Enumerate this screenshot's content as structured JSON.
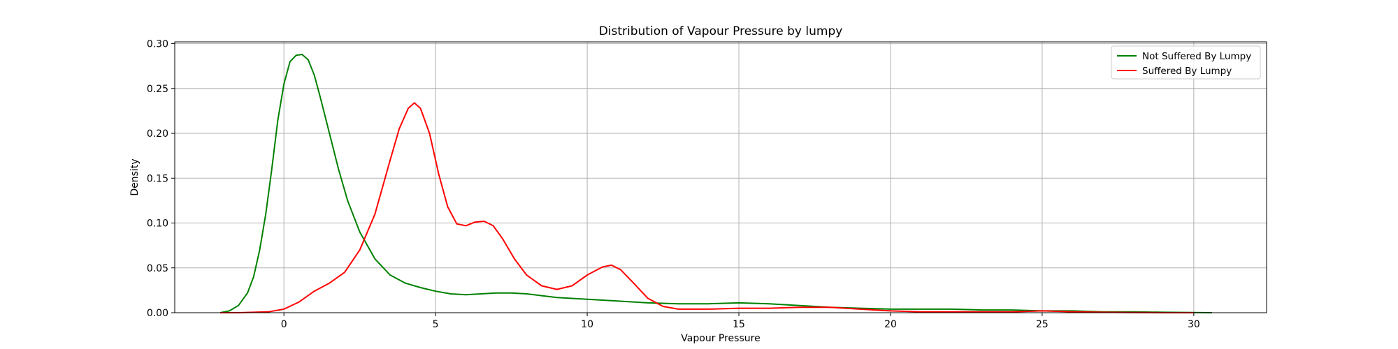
{
  "chart_data": {
    "type": "line",
    "title": "Distribution of Vapour Pressure by lumpy",
    "xlabel": "Vapour Pressure",
    "ylabel": "Density",
    "xlim": [
      -3.6,
      32.4
    ],
    "ylim": [
      0,
      0.302
    ],
    "xticks": [
      0,
      5,
      10,
      15,
      20,
      25,
      30
    ],
    "yticks": [
      0.0,
      0.05,
      0.1,
      0.15,
      0.2,
      0.25,
      0.3
    ],
    "xtick_labels": [
      "0",
      "5",
      "10",
      "15",
      "20",
      "25",
      "30"
    ],
    "ytick_labels": [
      "0.00",
      "0.05",
      "0.10",
      "0.15",
      "0.20",
      "0.25",
      "0.30"
    ],
    "grid": true,
    "legend_position": "top-right",
    "series": [
      {
        "name": "Not Suffered By Lumpy",
        "color": "#008000",
        "x": [
          -2.1,
          -1.8,
          -1.5,
          -1.2,
          -1.0,
          -0.8,
          -0.6,
          -0.4,
          -0.2,
          0.0,
          0.2,
          0.4,
          0.6,
          0.8,
          1.0,
          1.2,
          1.5,
          1.8,
          2.1,
          2.5,
          3.0,
          3.5,
          4.0,
          4.5,
          5.0,
          5.5,
          6.0,
          6.5,
          7.0,
          7.5,
          8.0,
          8.5,
          9.0,
          10.0,
          11.0,
          12.0,
          13.0,
          14.0,
          15.0,
          16.0,
          17.0,
          18.0,
          19.0,
          20.0,
          21.0,
          22.0,
          23.0,
          24.0,
          25.0,
          26.0,
          27.0,
          28.0,
          29.0,
          30.0,
          30.6
        ],
        "y": [
          0.0,
          0.002,
          0.008,
          0.022,
          0.04,
          0.07,
          0.11,
          0.16,
          0.215,
          0.255,
          0.28,
          0.287,
          0.288,
          0.282,
          0.265,
          0.24,
          0.2,
          0.16,
          0.125,
          0.09,
          0.06,
          0.042,
          0.033,
          0.028,
          0.024,
          0.021,
          0.02,
          0.021,
          0.022,
          0.022,
          0.021,
          0.019,
          0.017,
          0.015,
          0.013,
          0.011,
          0.01,
          0.01,
          0.011,
          0.01,
          0.008,
          0.006,
          0.005,
          0.004,
          0.004,
          0.004,
          0.003,
          0.003,
          0.002,
          0.002,
          0.001,
          0.001,
          0.0005,
          0.0002,
          0.0
        ]
      },
      {
        "name": "Suffered By Lumpy",
        "color": "#ff0000",
        "x": [
          -2.1,
          -1.5,
          -1.0,
          -0.5,
          0.0,
          0.5,
          1.0,
          1.5,
          2.0,
          2.5,
          3.0,
          3.5,
          3.8,
          4.1,
          4.3,
          4.5,
          4.8,
          5.1,
          5.4,
          5.7,
          6.0,
          6.3,
          6.6,
          6.9,
          7.2,
          7.6,
          8.0,
          8.5,
          9.0,
          9.5,
          10.0,
          10.5,
          10.8,
          11.1,
          11.5,
          12.0,
          12.5,
          13.0,
          14.0,
          15.0,
          16.0,
          17.0,
          18.0,
          19.0,
          20.0,
          21.0,
          22.0,
          23.0,
          24.0,
          25.0,
          26.0,
          27.0,
          28.0,
          29.0,
          30.0
        ],
        "y": [
          0.0,
          0.0,
          0.0005,
          0.001,
          0.004,
          0.012,
          0.024,
          0.033,
          0.045,
          0.07,
          0.11,
          0.17,
          0.205,
          0.228,
          0.234,
          0.228,
          0.2,
          0.155,
          0.118,
          0.099,
          0.097,
          0.101,
          0.102,
          0.097,
          0.083,
          0.06,
          0.042,
          0.03,
          0.026,
          0.03,
          0.042,
          0.051,
          0.053,
          0.048,
          0.034,
          0.016,
          0.007,
          0.004,
          0.004,
          0.005,
          0.005,
          0.006,
          0.006,
          0.004,
          0.002,
          0.001,
          0.001,
          0.001,
          0.001,
          0.002,
          0.001,
          0.0005,
          0.0002,
          0.0,
          0.0
        ]
      }
    ]
  }
}
